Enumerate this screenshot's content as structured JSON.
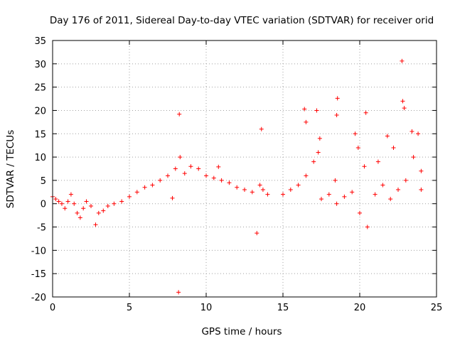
{
  "chart_data": {
    "type": "scatter",
    "title": "Day 176 of 2011, Sidereal Day-to-day VTEC variation (SDTVAR) for receiver orid",
    "xlabel": "GPS time / hours",
    "ylabel": "SDTVAR / TECUs",
    "xlim": [
      0,
      25
    ],
    "ylim": [
      -20,
      35
    ],
    "xticks": [
      0,
      5,
      10,
      15,
      20,
      25
    ],
    "yticks": [
      -20,
      -15,
      -10,
      -5,
      0,
      5,
      10,
      15,
      20,
      25,
      30,
      35
    ],
    "grid": true,
    "marker": "+",
    "color": "#ff0000",
    "series": [
      {
        "name": "SDTVAR",
        "points": [
          [
            0.0,
            1.5
          ],
          [
            0.2,
            1.0
          ],
          [
            0.4,
            0.5
          ],
          [
            0.6,
            0.0
          ],
          [
            0.8,
            -1.0
          ],
          [
            1.0,
            0.5
          ],
          [
            1.2,
            2.0
          ],
          [
            1.4,
            0.0
          ],
          [
            1.6,
            -2.0
          ],
          [
            1.8,
            -3.0
          ],
          [
            2.0,
            -1.0
          ],
          [
            2.2,
            0.5
          ],
          [
            2.5,
            -0.5
          ],
          [
            2.8,
            -4.5
          ],
          [
            3.0,
            -2.0
          ],
          [
            3.3,
            -1.5
          ],
          [
            3.6,
            -0.5
          ],
          [
            4.0,
            0.0
          ],
          [
            4.5,
            0.5
          ],
          [
            5.0,
            1.5
          ],
          [
            5.5,
            2.5
          ],
          [
            6.0,
            3.5
          ],
          [
            6.5,
            4.0
          ],
          [
            7.0,
            5.0
          ],
          [
            7.5,
            6.0
          ],
          [
            8.0,
            7.5
          ],
          [
            8.3,
            10.0
          ],
          [
            8.6,
            6.5
          ],
          [
            9.0,
            8.0
          ],
          [
            9.5,
            7.5
          ],
          [
            10.0,
            6.0
          ],
          [
            10.5,
            5.5
          ],
          [
            11.0,
            5.0
          ],
          [
            11.5,
            4.5
          ],
          [
            12.0,
            3.5
          ],
          [
            12.5,
            3.0
          ],
          [
            13.0,
            2.5
          ],
          [
            13.5,
            4.0
          ],
          [
            13.7,
            3.0
          ],
          [
            14.0,
            2.0
          ],
          [
            15.0,
            2.0
          ],
          [
            15.5,
            3.0
          ],
          [
            16.0,
            4.0
          ],
          [
            16.5,
            6.0
          ],
          [
            17.0,
            9.0
          ],
          [
            17.3,
            11.0
          ],
          [
            17.5,
            1.0
          ],
          [
            18.0,
            2.0
          ],
          [
            18.5,
            0.0
          ],
          [
            19.0,
            1.5
          ],
          [
            19.5,
            2.5
          ],
          [
            20.0,
            -2.0
          ],
          [
            20.3,
            8.0
          ],
          [
            20.5,
            -5.0
          ],
          [
            21.0,
            2.0
          ],
          [
            21.5,
            4.0
          ],
          [
            22.0,
            1.0
          ],
          [
            22.5,
            3.0
          ],
          [
            22.8,
            22.0
          ],
          [
            23.0,
            5.0
          ],
          [
            23.5,
            10.0
          ],
          [
            24.0,
            3.0
          ],
          [
            8.25,
            19.2
          ],
          [
            8.2,
            -19.0
          ],
          [
            7.8,
            1.2
          ],
          [
            10.8,
            7.9
          ],
          [
            13.3,
            -6.3
          ],
          [
            13.6,
            16.0
          ],
          [
            16.4,
            20.3
          ],
          [
            17.2,
            20.0
          ],
          [
            18.55,
            22.6
          ],
          [
            19.7,
            15.0
          ],
          [
            21.8,
            14.5
          ],
          [
            22.75,
            30.6
          ],
          [
            16.5,
            17.5
          ],
          [
            17.4,
            14.0
          ],
          [
            18.4,
            5.0
          ],
          [
            18.5,
            19.0
          ],
          [
            19.9,
            12.0
          ],
          [
            20.4,
            19.5
          ],
          [
            21.2,
            9.0
          ],
          [
            22.2,
            12.0
          ],
          [
            22.9,
            20.5
          ],
          [
            23.4,
            15.5
          ],
          [
            23.8,
            15.0
          ],
          [
            24.0,
            7.0
          ]
        ]
      }
    ]
  }
}
